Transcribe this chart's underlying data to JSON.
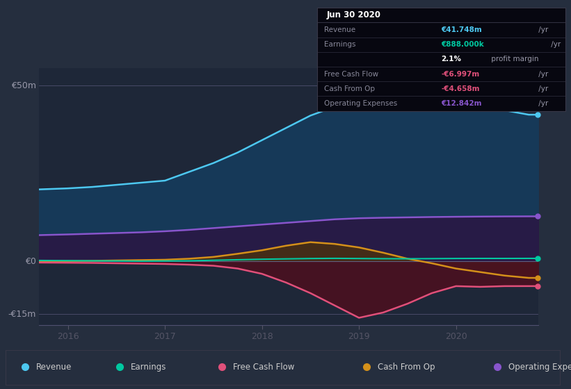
{
  "bg_color": "#252e3e",
  "plot_bg_color": "#1e2738",
  "title": "Jun 30 2020",
  "ylim": [
    -18000000,
    55000000
  ],
  "xlim": [
    2015.7,
    2020.85
  ],
  "xticks": [
    2016,
    2017,
    2018,
    2019,
    2020
  ],
  "series": {
    "Revenue": {
      "color": "#4dc8f0",
      "fill_color": "#1a3f60",
      "x": [
        2015.7,
        2016.0,
        2016.25,
        2016.5,
        2016.75,
        2017.0,
        2017.25,
        2017.5,
        2017.75,
        2018.0,
        2018.25,
        2018.5,
        2018.75,
        2019.0,
        2019.25,
        2019.5,
        2019.75,
        2020.0,
        2020.25,
        2020.5,
        2020.75,
        2020.85
      ],
      "y": [
        20500000,
        20800000,
        21200000,
        21800000,
        22400000,
        23000000,
        25500000,
        28000000,
        31000000,
        34500000,
        38000000,
        41500000,
        44000000,
        46500000,
        47000000,
        46500000,
        44500000,
        43500000,
        43800000,
        43000000,
        41748000,
        41748000
      ]
    },
    "Earnings": {
      "color": "#00c8a0",
      "x": [
        2015.7,
        2016.0,
        2016.25,
        2016.5,
        2016.75,
        2017.0,
        2017.25,
        2017.5,
        2017.75,
        2018.0,
        2018.25,
        2018.5,
        2018.75,
        2019.0,
        2019.25,
        2019.5,
        2019.75,
        2020.0,
        2020.25,
        2020.5,
        2020.75,
        2020.85
      ],
      "y": [
        300000,
        250000,
        200000,
        150000,
        100000,
        150000,
        200000,
        350000,
        500000,
        650000,
        750000,
        850000,
        900000,
        850000,
        800000,
        780000,
        820000,
        860000,
        880000,
        875000,
        888000,
        888000
      ]
    },
    "Free Cash Flow": {
      "color": "#e0507a",
      "fill_color": "#5a1a28",
      "x": [
        2015.7,
        2016.0,
        2016.25,
        2016.5,
        2016.75,
        2017.0,
        2017.25,
        2017.5,
        2017.75,
        2018.0,
        2018.25,
        2018.5,
        2018.75,
        2019.0,
        2019.25,
        2019.5,
        2019.75,
        2020.0,
        2020.25,
        2020.5,
        2020.75,
        2020.85
      ],
      "y": [
        -300000,
        -350000,
        -400000,
        -500000,
        -600000,
        -700000,
        -900000,
        -1200000,
        -2000000,
        -3500000,
        -6000000,
        -9000000,
        -12500000,
        -16000000,
        -14500000,
        -12000000,
        -9000000,
        -7000000,
        -7200000,
        -7000000,
        -6997000,
        -6997000
      ]
    },
    "Cash From Op": {
      "color": "#d4901a",
      "x": [
        2015.7,
        2016.0,
        2016.25,
        2016.5,
        2016.75,
        2017.0,
        2017.25,
        2017.5,
        2017.75,
        2018.0,
        2018.25,
        2018.5,
        2018.75,
        2019.0,
        2019.25,
        2019.5,
        2019.75,
        2020.0,
        2020.25,
        2020.5,
        2020.75,
        2020.85
      ],
      "y": [
        100000,
        150000,
        200000,
        300000,
        400000,
        500000,
        800000,
        1300000,
        2200000,
        3200000,
        4500000,
        5500000,
        5000000,
        4000000,
        2500000,
        800000,
        -500000,
        -2000000,
        -3000000,
        -4000000,
        -4658000,
        -4658000
      ]
    },
    "Operating Expenses": {
      "color": "#8855cc",
      "fill_color": "#2e1a50",
      "x": [
        2015.7,
        2016.0,
        2016.25,
        2016.5,
        2016.75,
        2017.0,
        2017.25,
        2017.5,
        2017.75,
        2018.0,
        2018.25,
        2018.5,
        2018.75,
        2019.0,
        2019.25,
        2019.5,
        2019.75,
        2020.0,
        2020.25,
        2020.5,
        2020.75,
        2020.85
      ],
      "y": [
        7500000,
        7700000,
        7900000,
        8100000,
        8300000,
        8600000,
        9000000,
        9500000,
        10000000,
        10500000,
        11000000,
        11500000,
        12000000,
        12300000,
        12450000,
        12550000,
        12650000,
        12720000,
        12780000,
        12820000,
        12842000,
        12842000
      ]
    }
  },
  "legend": [
    {
      "label": "Revenue",
      "color": "#4dc8f0"
    },
    {
      "label": "Earnings",
      "color": "#00c8a0"
    },
    {
      "label": "Free Cash Flow",
      "color": "#e0507a"
    },
    {
      "label": "Cash From Op",
      "color": "#d4901a"
    },
    {
      "label": "Operating Expenses",
      "color": "#8855cc"
    }
  ],
  "infobox": {
    "title": "Jun 30 2020",
    "rows": [
      {
        "label": "Revenue",
        "value": "€41.748m",
        "suffix": " /yr",
        "value_color": "#4dc8f0",
        "label_color": "#888899"
      },
      {
        "label": "Earnings",
        "value": "€888.000k",
        "suffix": " /yr",
        "value_color": "#00c8a0",
        "label_color": "#888899"
      },
      {
        "label": "",
        "value": "2.1%",
        "suffix": " profit margin",
        "value_color": "white",
        "label_color": "#888899"
      },
      {
        "label": "Free Cash Flow",
        "value": "-€6.997m",
        "suffix": " /yr",
        "value_color": "#e0507a",
        "label_color": "#888899"
      },
      {
        "label": "Cash From Op",
        "value": "-€4.658m",
        "suffix": " /yr",
        "value_color": "#e0507a",
        "label_color": "#888899"
      },
      {
        "label": "Operating Expenses",
        "value": "€12.842m",
        "suffix": " /yr",
        "value_color": "#8855cc",
        "label_color": "#888899"
      }
    ]
  }
}
